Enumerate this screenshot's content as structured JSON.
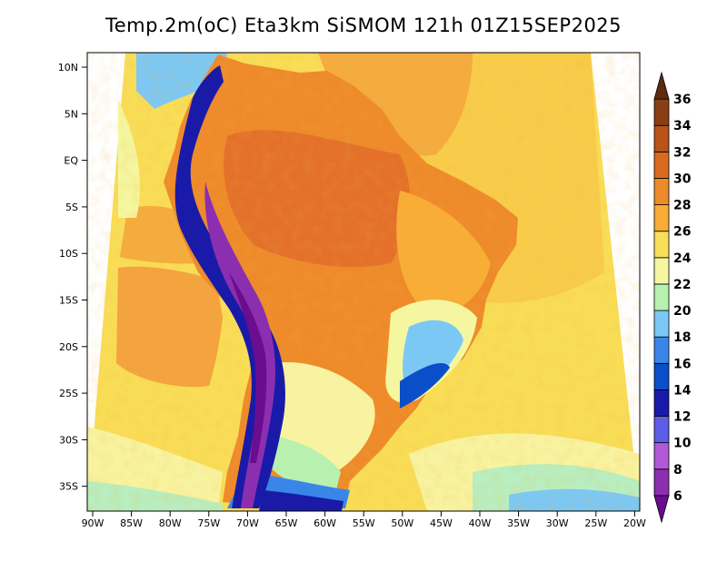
{
  "title": "Temp.2m(oC) Eta3km SiSMOM 121h 01Z15SEP2025",
  "map": {
    "lat_labels": [
      "10N",
      "5N",
      "EQ",
      "5S",
      "10S",
      "15S",
      "20S",
      "25S",
      "30S",
      "35S"
    ],
    "lon_labels": [
      "90W",
      "85W",
      "80W",
      "75W",
      "70W",
      "65W",
      "60W",
      "55W",
      "50W",
      "45W",
      "40W",
      "35W",
      "30W",
      "25W",
      "20W"
    ],
    "lat_range": [
      12,
      -38
    ],
    "lon_range": [
      -90,
      -20
    ]
  },
  "colorbar": {
    "labels": [
      "6",
      "8",
      "10",
      "12",
      "14",
      "16",
      "18",
      "20",
      "22",
      "24",
      "26",
      "28",
      "30",
      "32",
      "34",
      "36"
    ],
    "colors": [
      "#6a0d8f",
      "#8b2fb0",
      "#b05ad8",
      "#5d5de8",
      "#1a1aa8",
      "#0a4fc9",
      "#3a86e8",
      "#7cc8f5",
      "#b8f0b0",
      "#f4f7a0",
      "#f8df59",
      "#f8ad36",
      "#ee8a2a",
      "#d96a1f",
      "#b8541a",
      "#8a3e15",
      "#5e2a10"
    ]
  }
}
